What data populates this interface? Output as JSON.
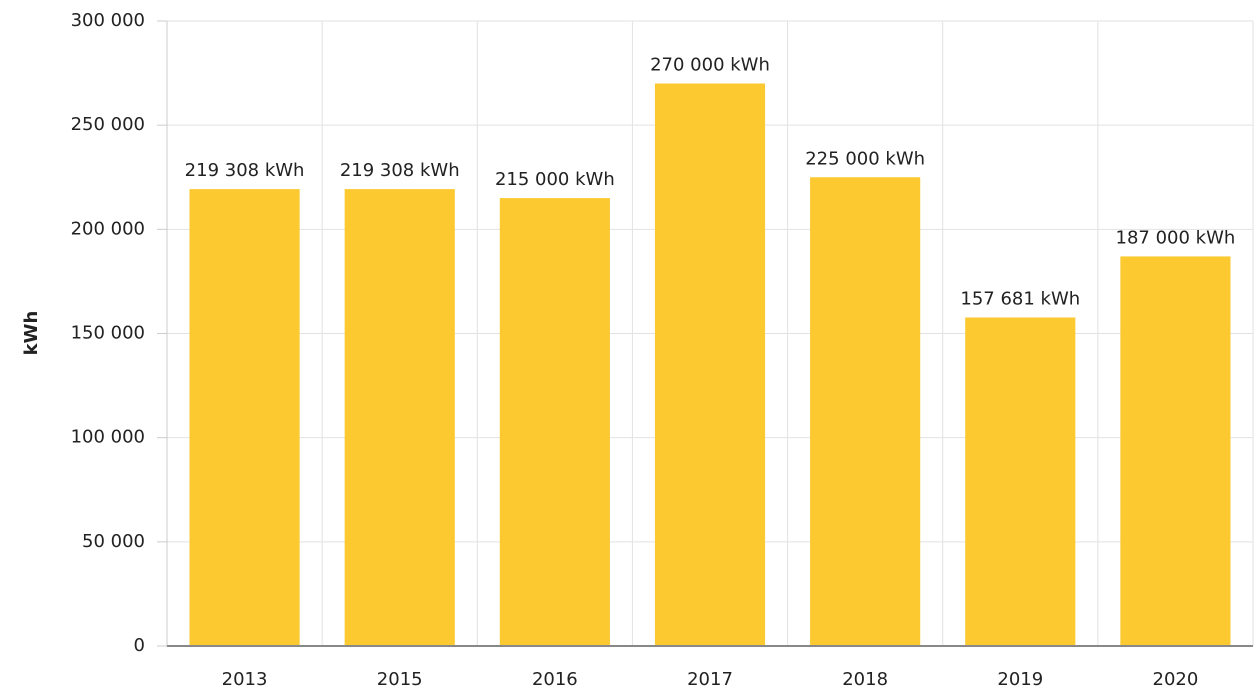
{
  "chart_data": {
    "type": "bar",
    "y_label": "kWh",
    "categories": [
      "2013",
      "2015",
      "2016",
      "2017",
      "2018",
      "2019",
      "2020"
    ],
    "values": [
      219308,
      219308,
      215000,
      270000,
      225000,
      157681,
      187000
    ],
    "value_labels": [
      "219 308 kWh",
      "219 308 kWh",
      "215 000 kWh",
      "270 000 kWh",
      "225 000 kWh",
      "157 681 kWh",
      "187 000 kWh"
    ],
    "color": "#fcc931",
    "ylim": [
      0,
      300000
    ],
    "yticks": [
      {
        "value": 0,
        "label": "0"
      },
      {
        "value": 50000,
        "label": "50 000"
      },
      {
        "value": 100000,
        "label": "100 000"
      },
      {
        "value": 150000,
        "label": "150 000"
      },
      {
        "value": 200000,
        "label": "200 000"
      },
      {
        "value": 250000,
        "label": "250 000"
      },
      {
        "value": 300000,
        "label": "300 000"
      }
    ],
    "grid": true
  }
}
